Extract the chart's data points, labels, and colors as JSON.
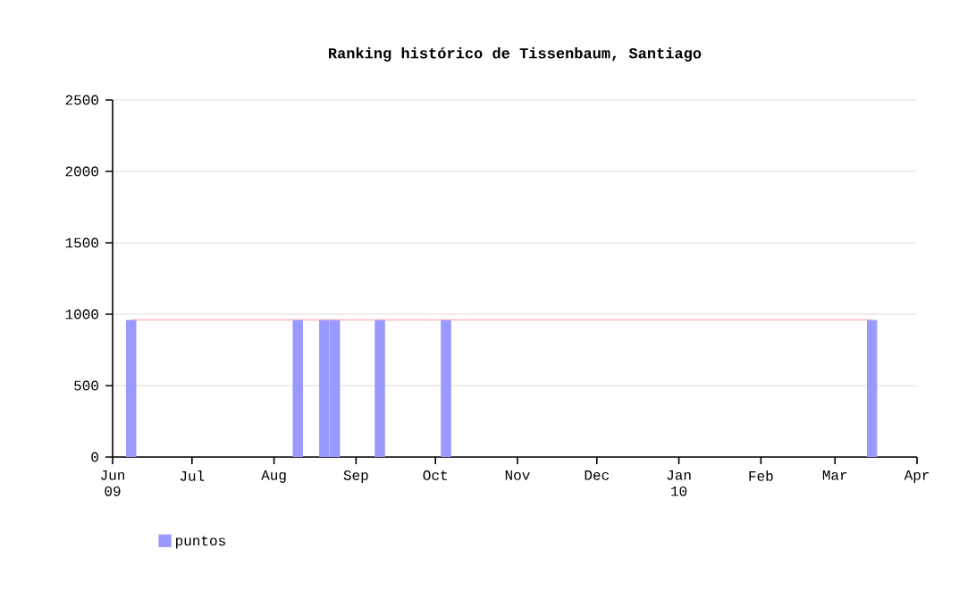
{
  "chart_data": {
    "type": "bar",
    "title": "Ranking histórico de Tissenbaum, Santiago",
    "x": [
      "2009-06-08",
      "2009-08-10",
      "2009-08-20",
      "2009-08-24",
      "2009-09-10",
      "2009-10-05",
      "2010-03-15"
    ],
    "series": [
      {
        "name": "puntos",
        "color": "#9999ff",
        "values": [
          960,
          960,
          960,
          960,
          960,
          960,
          960
        ]
      },
      {
        "type": "line",
        "color": "#ffc0c0",
        "values": [
          960,
          960,
          960,
          960,
          960,
          960,
          960
        ]
      }
    ],
    "xlim": [
      "2009-06-01",
      "2010-04-01"
    ],
    "xticks": [
      {
        "value": "2009-06-01",
        "label": "Jun 09"
      },
      {
        "value": "2009-07-01",
        "label": "Jul"
      },
      {
        "value": "2009-08-01",
        "label": "Aug"
      },
      {
        "value": "2009-09-01",
        "label": "Sep"
      },
      {
        "value": "2009-10-01",
        "label": "Oct"
      },
      {
        "value": "2009-11-01",
        "label": "Nov"
      },
      {
        "value": "2009-12-01",
        "label": "Dec"
      },
      {
        "value": "2010-01-01",
        "label": "Jan 10"
      },
      {
        "value": "2010-02-01",
        "label": "Feb"
      },
      {
        "value": "2010-03-01",
        "label": "Mar"
      },
      {
        "value": "2010-04-01",
        "label": "Apr"
      }
    ],
    "ylim": [
      0,
      2500
    ],
    "yticks": [
      0,
      500,
      1000,
      1500,
      2000,
      2500
    ],
    "grid": "y",
    "legend": "bottom left"
  }
}
